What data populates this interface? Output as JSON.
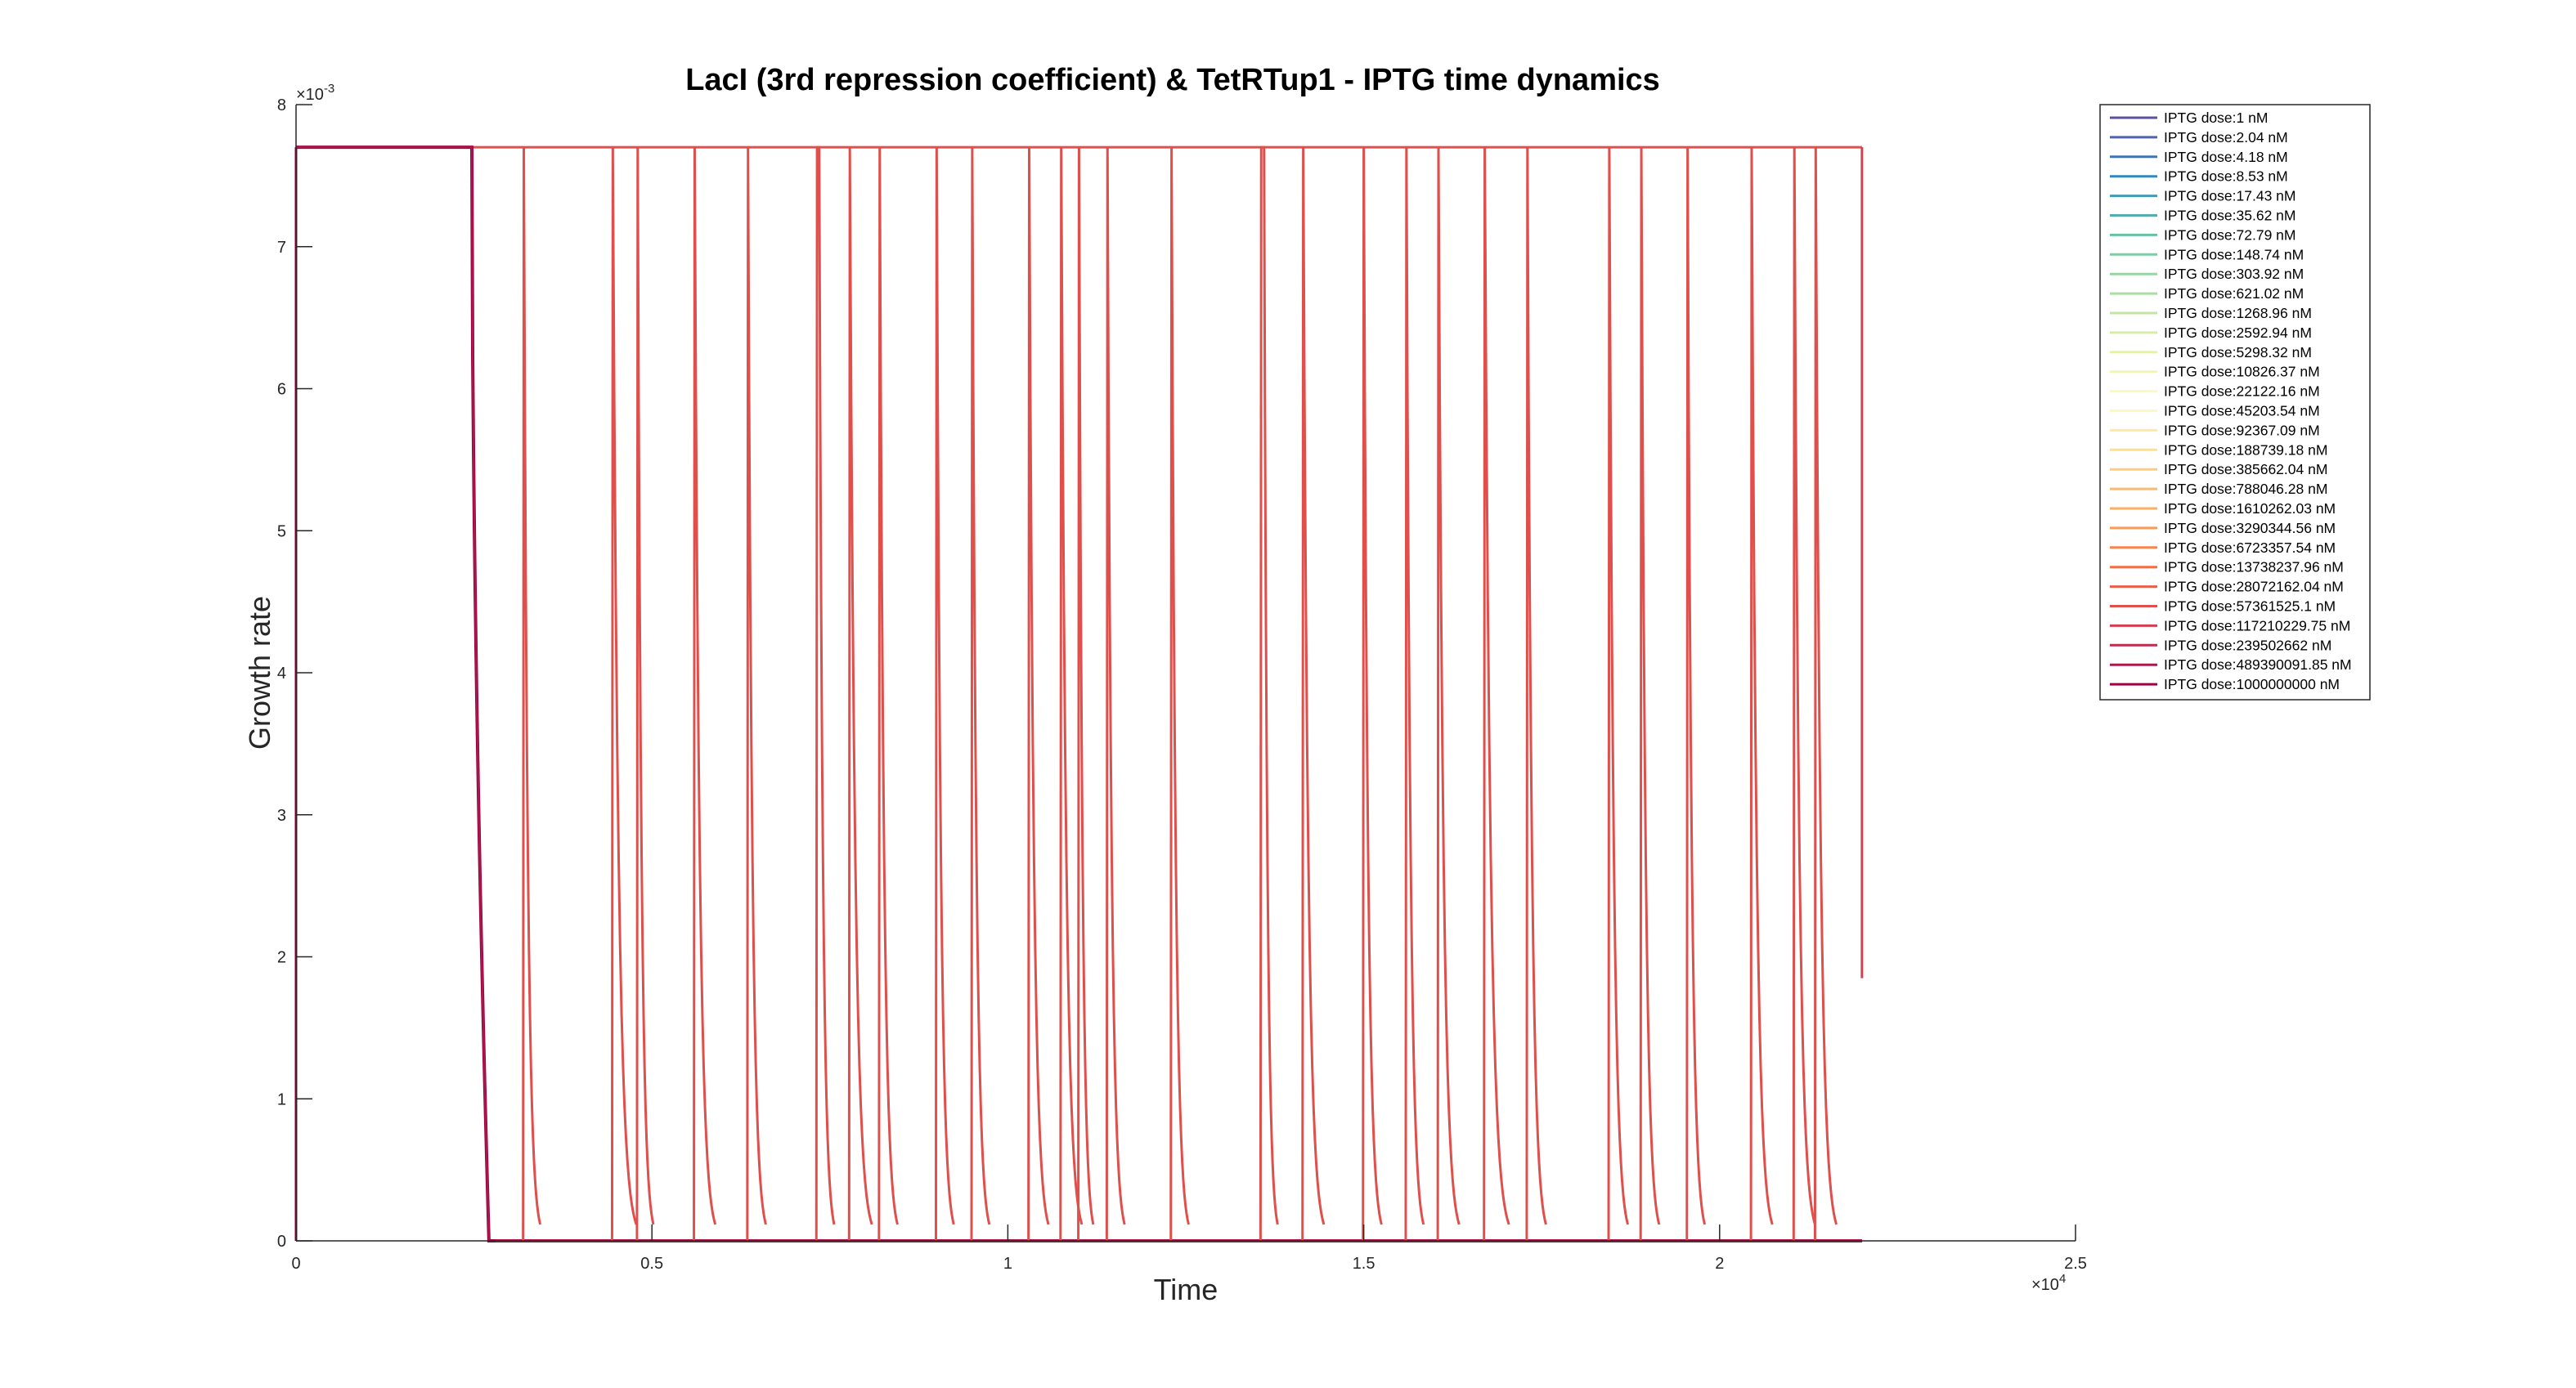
{
  "chart_data": {
    "type": "line",
    "title": "LacI (3rd repression coefficient) & TetRTup1 - IPTG time dynamics",
    "xlabel": "Time",
    "ylabel": "Growth rate",
    "x_exponent": "×10",
    "x_exponent_power": "4",
    "y_exponent": "×10",
    "y_exponent_power": "-3",
    "xlim": [
      0,
      25000
    ],
    "ylim": [
      0,
      0.008
    ],
    "x_ticks": [
      0,
      5000,
      10000,
      15000,
      20000,
      25000
    ],
    "x_tick_labels": [
      "0",
      "0.5",
      "1",
      "1.5",
      "2",
      "2.5"
    ],
    "y_ticks": [
      0,
      0.001,
      0.002,
      0.003,
      0.004,
      0.005,
      0.006,
      0.007,
      0.008
    ],
    "y_tick_labels": [
      "0",
      "1",
      "2",
      "3",
      "4",
      "5",
      "6",
      "7",
      "8"
    ],
    "grid": false,
    "legend_position": "top-right",
    "plateau_value": 0.0077,
    "t_end": 22000,
    "final_value_last_series": 0.00185,
    "series": [
      {
        "name": "IPTG dose:1 nM",
        "color": "#5e4fa2"
      },
      {
        "name": "IPTG dose:2.04 nM",
        "color": "#4f62aa"
      },
      {
        "name": "IPTG dose:4.18 nM",
        "color": "#4075b4"
      },
      {
        "name": "IPTG dose:8.53 nM",
        "color": "#3288bd"
      },
      {
        "name": "IPTG dose:17.43 nM",
        "color": "#439bb5"
      },
      {
        "name": "IPTG dose:35.62 nM",
        "color": "#54aead"
      },
      {
        "name": "IPTG dose:72.79 nM",
        "color": "#66c2a5"
      },
      {
        "name": "IPTG dose:148.74 nM",
        "color": "#80cca4"
      },
      {
        "name": "IPTG dose:303.92 nM",
        "color": "#99d5a4"
      },
      {
        "name": "IPTG dose:621.02 nM",
        "color": "#abdda4"
      },
      {
        "name": "IPTG dose:1268.96 nM",
        "color": "#c0e6a2"
      },
      {
        "name": "IPTG dose:2592.94 nM",
        "color": "#d5eea0"
      },
      {
        "name": "IPTG dose:5298.32 nM",
        "color": "#e6f598"
      },
      {
        "name": "IPTG dose:10826.37 nM",
        "color": "#f0f7aa"
      },
      {
        "name": "IPTG dose:22122.16 nM",
        "color": "#f8fbbd"
      },
      {
        "name": "IPTG dose:45203.54 nM",
        "color": "#fef8bf"
      },
      {
        "name": "IPTG dose:92367.09 nM",
        "color": "#fee9a3"
      },
      {
        "name": "IPTG dose:188739.18 nM",
        "color": "#fee08b"
      },
      {
        "name": "IPTG dose:385662.04 nM",
        "color": "#fdcd7c"
      },
      {
        "name": "IPTG dose:788046.28 nM",
        "color": "#fdba6c"
      },
      {
        "name": "IPTG dose:1610262.03 nM",
        "color": "#fdae61"
      },
      {
        "name": "IPTG dose:3290344.56 nM",
        "color": "#fb9957"
      },
      {
        "name": "IPTG dose:6723357.54 nM",
        "color": "#f8844e"
      },
      {
        "name": "IPTG dose:13738237.96 nM",
        "color": "#f46d43"
      },
      {
        "name": "IPTG dose:28072162.04 nM",
        "color": "#ea5f48"
      },
      {
        "name": "IPTG dose:57361525.1 nM",
        "color": "#df504c"
      },
      {
        "name": "IPTG dose:117210229.75 nM",
        "color": "#d53e4f"
      },
      {
        "name": "IPTG dose:239502662 nM",
        "color": "#c02b4e"
      },
      {
        "name": "IPTG dose:489390091.85 nM",
        "color": "#ab184c"
      },
      {
        "name": "IPTG dose:1000000000 nM",
        "color": "#9e0142"
      }
    ],
    "pulses": [
      {
        "drop": 3200,
        "rise": 3270,
        "end": 3290
      },
      {
        "drop": 4450,
        "rise": 4560,
        "end": 4640
      },
      {
        "drop": 4800,
        "rise": 4830,
        "end": 4880
      },
      {
        "drop": 5600,
        "rise": 5670,
        "end": 5750
      },
      {
        "drop": 6350,
        "rise": 6420,
        "end": 6460
      },
      {
        "drop": 7350,
        "rise": 7320,
        "end": 7420
      },
      {
        "drop": 7780,
        "rise": 7860,
        "end": 7950
      },
      {
        "drop": 8200,
        "rise": 8270,
        "end": 8310
      },
      {
        "drop": 9000,
        "rise": 9060,
        "end": 9100
      },
      {
        "drop": 9500,
        "rise": 9560,
        "end": 9600
      },
      {
        "drop": 10300,
        "rise": 10350,
        "end": 10430
      },
      {
        "drop": 10750,
        "rise": 10810,
        "end": 10900
      },
      {
        "drop": 11000,
        "rise": 11020,
        "end": 11060
      },
      {
        "drop": 11400,
        "rise": 11440,
        "end": 11500
      },
      {
        "drop": 12300,
        "rise": 12360,
        "end": 12400
      },
      {
        "drop": 13600,
        "rise": 13560,
        "end": 13650
      },
      {
        "drop": 14150,
        "rise": 14200,
        "end": 14300
      },
      {
        "drop": 15000,
        "rise": 15070,
        "end": 15110
      },
      {
        "drop": 15600,
        "rise": 15640,
        "end": 15700
      },
      {
        "drop": 16050,
        "rise": 16090,
        "end": 16200
      },
      {
        "drop": 16700,
        "rise": 16800,
        "end": 16900
      },
      {
        "drop": 17300,
        "rise": 17380,
        "end": 17420
      },
      {
        "drop": 18450,
        "rise": 18500,
        "end": 18570
      },
      {
        "drop": 18900,
        "rise": 18930,
        "end": 19010
      },
      {
        "drop": 19550,
        "rise": 19600,
        "end": 19650
      },
      {
        "drop": 20450,
        "rise": 20500,
        "end": 20600
      },
      {
        "drop": 21050,
        "rise": 21100,
        "end": 21200
      },
      {
        "drop": 21350,
        "rise": 21400,
        "end": 21500
      }
    ],
    "main_drop": 2500
  }
}
